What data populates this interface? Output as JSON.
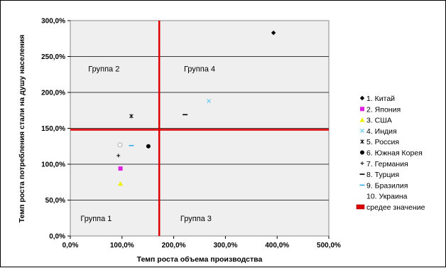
{
  "chart_data": {
    "type": "scatter",
    "title": "",
    "xlabel": "Темп роста объема производства",
    "ylabel": "Темп роста потребления стали на душу населения",
    "xlim": [
      0,
      500
    ],
    "ylim": [
      0,
      300
    ],
    "x_ticks": [
      "0,0%",
      "100,0%",
      "200,0%",
      "300,0%",
      "400,0%",
      "500,0%"
    ],
    "y_ticks": [
      "0,0%",
      "50,0%",
      "100,0%",
      "150,0%",
      "200,0%",
      "250,0%",
      "300,0%"
    ],
    "grid": true,
    "legend_position": "right",
    "series": [
      {
        "name": "1. Китай",
        "marker": "diamond",
        "color": "#000000",
        "points": [
          [
            393,
            283
          ]
        ]
      },
      {
        "name": "2. Япония",
        "marker": "square",
        "color": "#e020e0",
        "points": [
          [
            97,
            94
          ]
        ]
      },
      {
        "name": "3. США",
        "marker": "triangle",
        "color": "#f0f000",
        "points": [
          [
            97,
            73
          ]
        ]
      },
      {
        "name": "4. Индия",
        "marker": "x",
        "color": "#66ccee",
        "points": [
          [
            268,
            188
          ]
        ]
      },
      {
        "name": "5. Россия",
        "marker": "star",
        "color": "#000000",
        "points": [
          [
            118,
            167
          ]
        ]
      },
      {
        "name": "6. Южная Корея",
        "marker": "dot",
        "color": "#000000",
        "points": [
          [
            151,
            125
          ]
        ]
      },
      {
        "name": "7. Германия",
        "marker": "plus",
        "color": "#000000",
        "points": [
          [
            93,
            112
          ]
        ]
      },
      {
        "name": "8. Турция",
        "marker": "dash",
        "color": "#000000",
        "points": [
          [
            222,
            169
          ]
        ]
      },
      {
        "name": "9. Бразилия",
        "marker": "dash",
        "color": "#33aaee",
        "points": [
          [
            118,
            126
          ]
        ]
      },
      {
        "name": "10. Украина",
        "marker": "none",
        "color": "#ffffff",
        "points": [
          [
            96,
            127
          ]
        ]
      }
    ],
    "average_lines": {
      "name": "средее значение",
      "color": "#dd0000",
      "x": 172,
      "y": 148
    },
    "annotations": [
      {
        "text": "Группа 1",
        "x": 50,
        "y": 25
      },
      {
        "text": "Группа 2",
        "x": 65,
        "y": 233
      },
      {
        "text": "Группа 3",
        "x": 243,
        "y": 25
      },
      {
        "text": "Группа 4",
        "x": 250,
        "y": 233
      }
    ]
  }
}
